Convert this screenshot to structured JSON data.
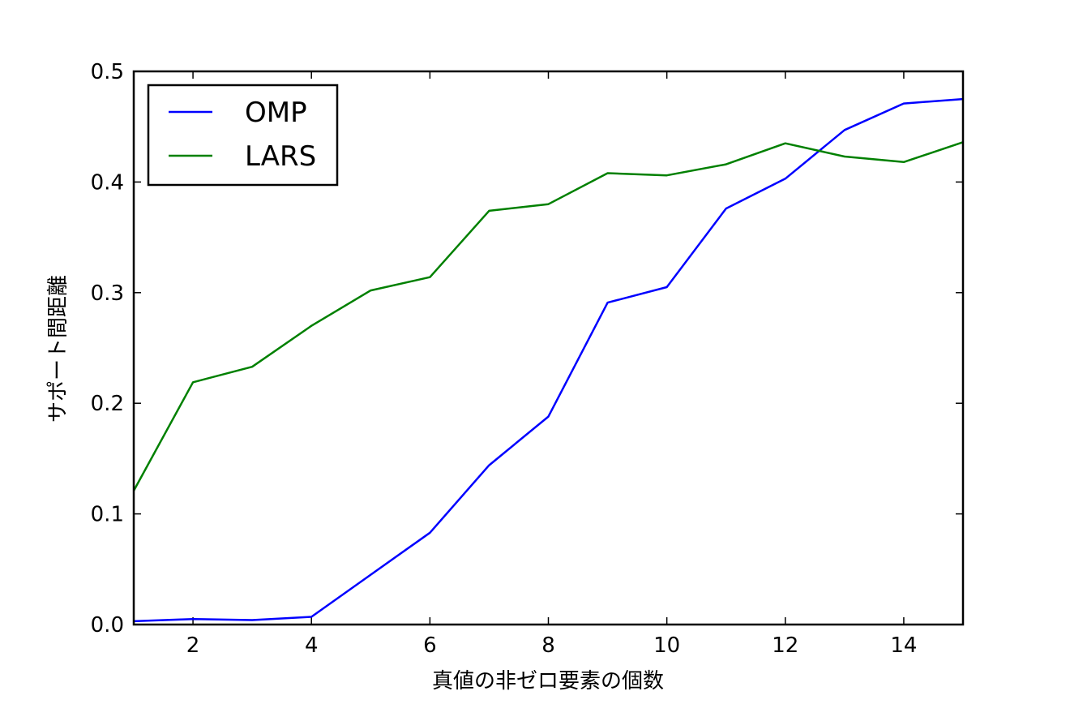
{
  "chart_data": {
    "type": "line",
    "title": "",
    "xlabel": "真値の非ゼロ要素の個数",
    "ylabel": "サポート間距離",
    "xlim": [
      1,
      15
    ],
    "ylim": [
      0.0,
      0.5
    ],
    "xticks": [
      2,
      4,
      6,
      8,
      10,
      12,
      14
    ],
    "yticks": [
      0.0,
      0.1,
      0.2,
      0.3,
      0.4,
      0.5
    ],
    "xtick_labels": [
      "2",
      "4",
      "6",
      "8",
      "10",
      "12",
      "14"
    ],
    "ytick_labels": [
      "0.0",
      "0.1",
      "0.2",
      "0.3",
      "0.4",
      "0.5"
    ],
    "grid": false,
    "legend_position": "top-left",
    "x": [
      1,
      2,
      3,
      4,
      5,
      6,
      7,
      8,
      9,
      10,
      11,
      12,
      13,
      14,
      15
    ],
    "series": [
      {
        "name": "OMP",
        "color": "#0000ff",
        "values": [
          0.003,
          0.005,
          0.004,
          0.007,
          0.045,
          0.083,
          0.144,
          0.188,
          0.291,
          0.305,
          0.376,
          0.403,
          0.447,
          0.471,
          0.475
        ]
      },
      {
        "name": "LARS",
        "color": "#008000",
        "values": [
          0.121,
          0.219,
          0.233,
          0.27,
          0.302,
          0.314,
          0.374,
          0.38,
          0.408,
          0.406,
          0.416,
          0.435,
          0.423,
          0.418,
          0.436
        ]
      }
    ]
  }
}
